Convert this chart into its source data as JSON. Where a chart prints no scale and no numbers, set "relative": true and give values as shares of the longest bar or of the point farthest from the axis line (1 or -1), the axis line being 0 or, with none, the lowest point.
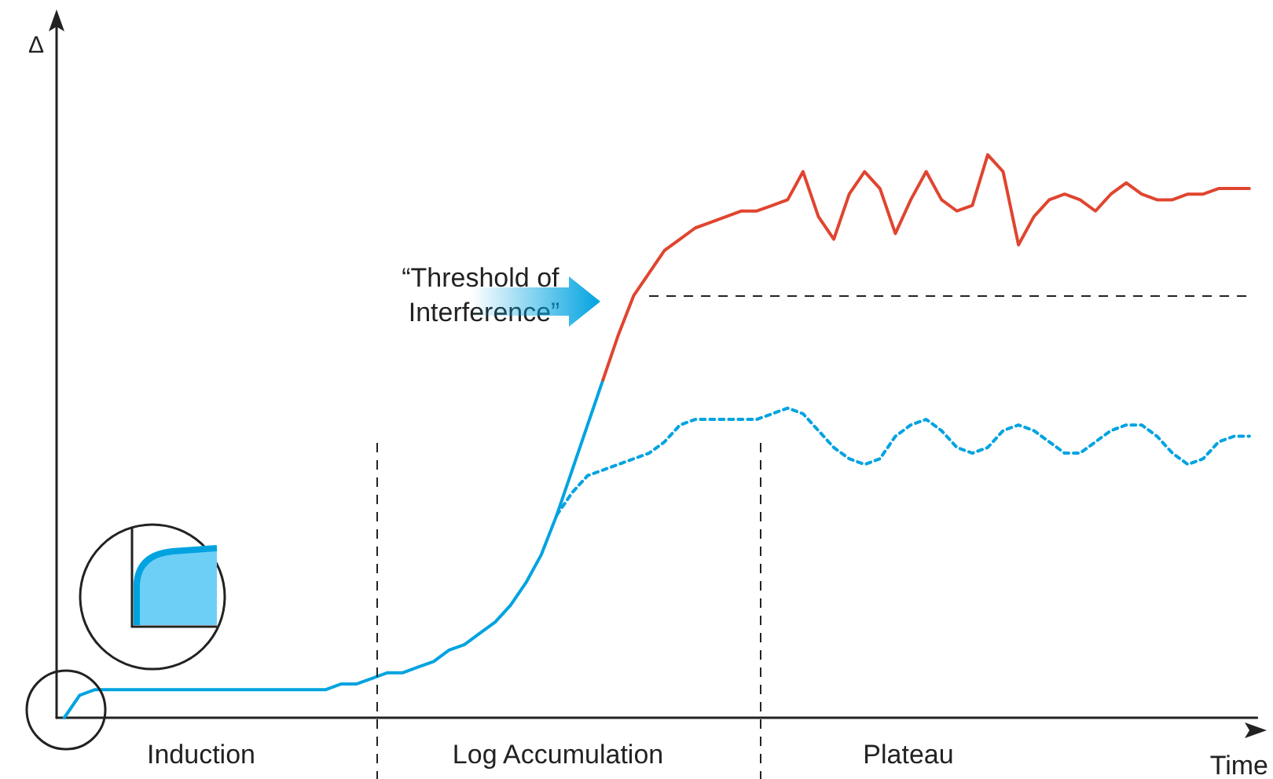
{
  "chart_data": {
    "type": "line",
    "relative": true,
    "xlabel": "Time",
    "ylabel": "Δ",
    "marker": "none",
    "categories": [
      null,
      null,
      null,
      null,
      null,
      null,
      null,
      null,
      null,
      null,
      null,
      null,
      null,
      null,
      null,
      null,
      null,
      null,
      null,
      null,
      null,
      null,
      null,
      null,
      null,
      null,
      null,
      null,
      null,
      null,
      null,
      null,
      null,
      null,
      null,
      null,
      null,
      null,
      null,
      null,
      null,
      null,
      null,
      null,
      null,
      null,
      null,
      null,
      null,
      null,
      null,
      null,
      null,
      null,
      null,
      null,
      null,
      null,
      null,
      null,
      null,
      null,
      null,
      null,
      null,
      null,
      null,
      null,
      null,
      null,
      null,
      null,
      null,
      null,
      null,
      null,
      null,
      null
    ],
    "series": [
      {
        "color": "#00a3e0",
        "line_style": "solid",
        "values": [
          0,
          0.04,
          0.05,
          0.05,
          0.05,
          0.05,
          0.05,
          0.05,
          0.05,
          0.05,
          0.05,
          0.05,
          0.05,
          0.05,
          0.05,
          0.05,
          0.05,
          0.05,
          0.06,
          0.06,
          0.07,
          0.08,
          0.08,
          0.09,
          0.1,
          0.12,
          0.13,
          0.15,
          0.17,
          0.2,
          0.24,
          0.29,
          0.36,
          0.44,
          0.52,
          0.6,
          null,
          null,
          null,
          null,
          null,
          null,
          null,
          null,
          null,
          null,
          null,
          null,
          null,
          null,
          null,
          null,
          null,
          null,
          null,
          null,
          null,
          null,
          null,
          null,
          null,
          null,
          null,
          null,
          null,
          null,
          null,
          null,
          null,
          null,
          null,
          null,
          null,
          null,
          null,
          null,
          null,
          null
        ]
      },
      {
        "color": "#e0452f",
        "line_style": "solid",
        "values": [
          null,
          null,
          null,
          null,
          null,
          null,
          null,
          null,
          null,
          null,
          null,
          null,
          null,
          null,
          null,
          null,
          null,
          null,
          null,
          null,
          null,
          null,
          null,
          null,
          null,
          null,
          null,
          null,
          null,
          null,
          null,
          null,
          null,
          null,
          null,
          0.6,
          0.68,
          0.75,
          0.79,
          0.83,
          0.85,
          0.87,
          0.88,
          0.89,
          0.9,
          0.9,
          0.91,
          0.92,
          0.97,
          0.89,
          0.85,
          0.93,
          0.97,
          0.94,
          0.86,
          0.92,
          0.97,
          0.92,
          0.9,
          0.91,
          1,
          0.97,
          0.84,
          0.89,
          0.92,
          0.93,
          0.92,
          0.9,
          0.93,
          0.95,
          0.93,
          0.92,
          0.92,
          0.93,
          0.93,
          0.94,
          0.94,
          0.94
        ]
      },
      {
        "color": "#00a3e0",
        "line_style": "dotted",
        "values": [
          null,
          null,
          null,
          null,
          null,
          null,
          null,
          null,
          null,
          null,
          null,
          null,
          null,
          null,
          null,
          null,
          null,
          null,
          null,
          null,
          null,
          null,
          null,
          null,
          null,
          null,
          null,
          null,
          null,
          null,
          null,
          null,
          0.36,
          0.4,
          0.43,
          0.44,
          0.45,
          0.46,
          0.47,
          0.49,
          0.52,
          0.53,
          0.53,
          0.53,
          0.53,
          0.53,
          0.54,
          0.55,
          0.54,
          0.51,
          0.48,
          0.46,
          0.45,
          0.46,
          0.5,
          0.52,
          0.53,
          0.51,
          0.48,
          0.47,
          0.48,
          0.51,
          0.52,
          0.51,
          0.49,
          0.47,
          0.47,
          0.49,
          0.51,
          0.52,
          0.52,
          0.5,
          0.47,
          0.45,
          0.46,
          0.49,
          0.5,
          0.5
        ]
      }
    ],
    "ref_lines": [
      {
        "axis": "y",
        "value": 0.75,
        "label": "“Threshold of Interference”",
        "line_style": "dashed",
        "color": "#222222"
      }
    ],
    "annotations": [
      "Induction",
      "Log Accumulation",
      "Plateau"
    ]
  }
}
